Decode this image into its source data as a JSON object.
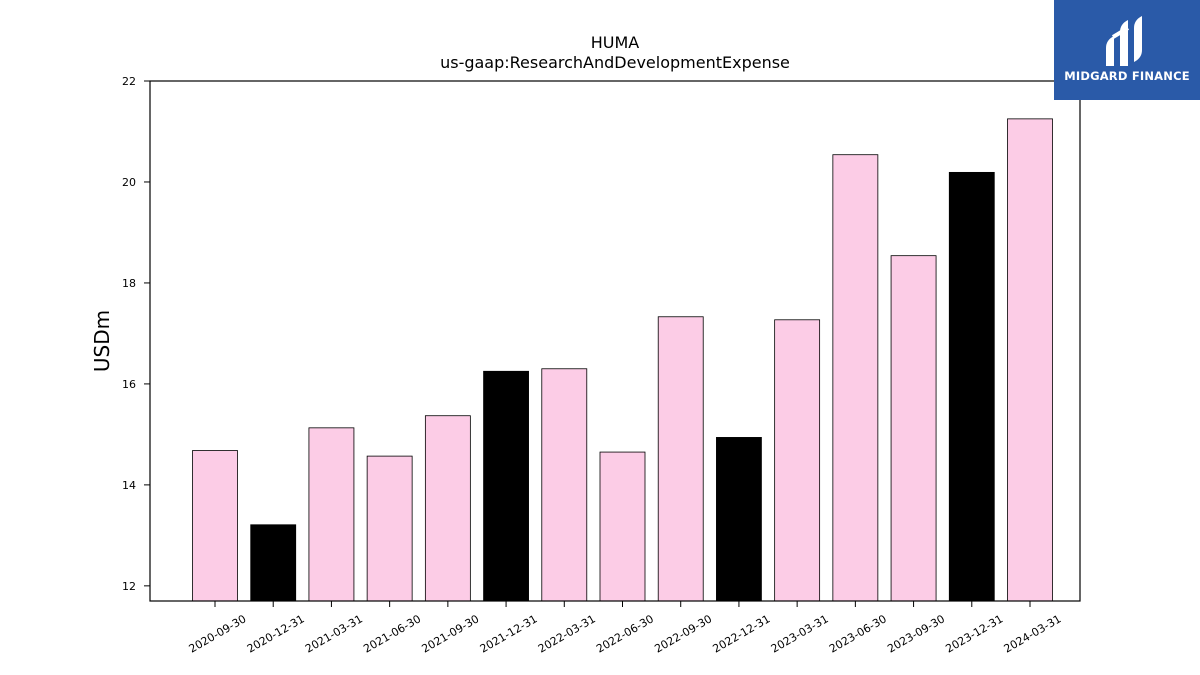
{
  "chart_data": {
    "type": "bar",
    "title": "HUMA",
    "subtitle": "us-gaap:ResearchAndDevelopmentExpense",
    "xlabel": "",
    "ylabel": "USDm",
    "ylim": [
      11.7,
      22.0
    ],
    "yticks": [
      12,
      14,
      16,
      18,
      20,
      22
    ],
    "grid": false,
    "categories": [
      "2020-09-30",
      "2020-12-31",
      "2021-03-31",
      "2021-06-30",
      "2021-09-30",
      "2021-12-31",
      "2022-03-31",
      "2022-06-30",
      "2022-09-30",
      "2022-12-31",
      "2023-03-31",
      "2023-06-30",
      "2023-09-30",
      "2023-12-31",
      "2024-03-31"
    ],
    "values": [
      14.68,
      13.21,
      15.13,
      14.57,
      15.37,
      16.25,
      16.3,
      14.65,
      17.33,
      14.94,
      17.27,
      20.54,
      18.54,
      20.19,
      21.25
    ],
    "bar_colors": [
      "#fccce6",
      "#000000",
      "#fccce6",
      "#fccce6",
      "#fccce6",
      "#000000",
      "#fccce6",
      "#fccce6",
      "#fccce6",
      "#000000",
      "#fccce6",
      "#fccce6",
      "#fccce6",
      "#000000",
      "#fccce6"
    ]
  },
  "logo": {
    "brand_text": "MIDGARD FINANCE",
    "background": "#2a5aa8",
    "icon": "midgard-m-logo-icon"
  }
}
